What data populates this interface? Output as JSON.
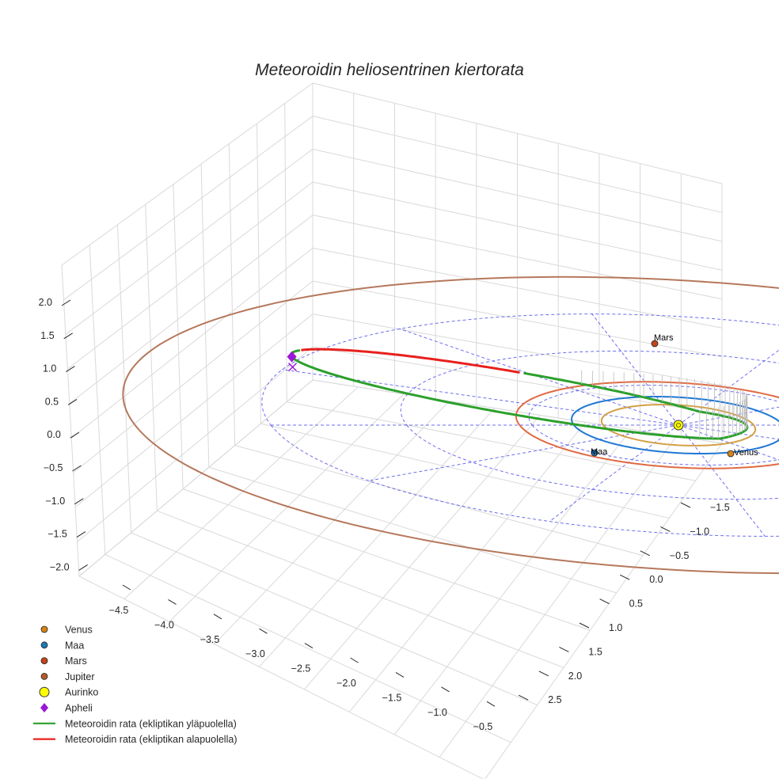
{
  "chart_data": {
    "type": "3d-line",
    "title": "Meteoroidin heliosentrinen kiertorata",
    "xlabel": "",
    "ylabel": "",
    "zlabel": "",
    "x_ticks": [
      "−4.5",
      "−4.0",
      "−3.5",
      "−3.0",
      "−2.5",
      "−2.0",
      "−1.5",
      "−1.0",
      "−0.5"
    ],
    "y_ticks": [
      "−1.5",
      "−1.0",
      "−0.5",
      "0.0",
      "0.5",
      "1.0",
      "1.5",
      "2.0",
      "2.5"
    ],
    "z_ticks": [
      "2.0",
      "1.5",
      "1.0",
      "0.5",
      "0.0",
      "−0.5",
      "−1.0",
      "−1.5",
      "−2.0"
    ],
    "xlim": [
      -4.8,
      -0.4
    ],
    "ylim": [
      -1.8,
      2.8
    ],
    "zlim": [
      -2.2,
      2.2
    ],
    "sun": {
      "name": "Aurinko",
      "x": 0.0,
      "y": 0.0,
      "z": 0.0,
      "color": "#ffff00"
    },
    "planet_orbits": [
      {
        "name": "Venus",
        "radius_au": 0.72,
        "color": "#d4a045"
      },
      {
        "name": "Maa",
        "radius_au": 1.0,
        "color": "#1f77d4"
      },
      {
        "name": "Mars",
        "radius_au": 1.52,
        "color": "#e06a43"
      },
      {
        "name": "Jupiter",
        "radius_au": 5.2,
        "color": "#b5785c"
      }
    ],
    "planets": [
      {
        "name": "Venus",
        "label": "Venus",
        "color": "#d4841a"
      },
      {
        "name": "Maa",
        "label": "Maa",
        "color": "#1f77b4"
      },
      {
        "name": "Mars",
        "label": "Mars",
        "color": "#c0451b"
      },
      {
        "name": "Jupiter",
        "label": "",
        "color": "#b05a2a"
      }
    ],
    "meteoroid_orbit": {
      "aphelion_au": 3.7,
      "perihelion_au": 0.65,
      "above_color": "#2ca02c",
      "below_color": "#e8201c"
    },
    "aphelion_marker": {
      "name": "Apheli",
      "color": "#9a17d6"
    },
    "grid": true,
    "legend_position": "bottom-left",
    "legend": [
      {
        "label": "Venus",
        "kind": "dot",
        "color": "#d4841a"
      },
      {
        "label": "Maa",
        "kind": "dot",
        "color": "#1f77b4"
      },
      {
        "label": "Mars",
        "kind": "dot",
        "color": "#c0451b"
      },
      {
        "label": "Jupiter",
        "kind": "dot",
        "color": "#b05a2a"
      },
      {
        "label": "Aurinko",
        "kind": "sun",
        "color": "#ffff00"
      },
      {
        "label": "Apheli",
        "kind": "diamond",
        "color": "#9a17d6"
      },
      {
        "label": "Meteoroidin rata (ekliptikan yläpuolella)",
        "kind": "line",
        "color": "#2ca02c"
      },
      {
        "label": "Meteoroidin rata (ekliptikan alapuolella)",
        "kind": "line",
        "color": "#e8201c"
      }
    ],
    "colors": {
      "grid": "#d9d9d9",
      "ecliptic_grid": "#5555ee",
      "axis_text": "#262626"
    }
  }
}
